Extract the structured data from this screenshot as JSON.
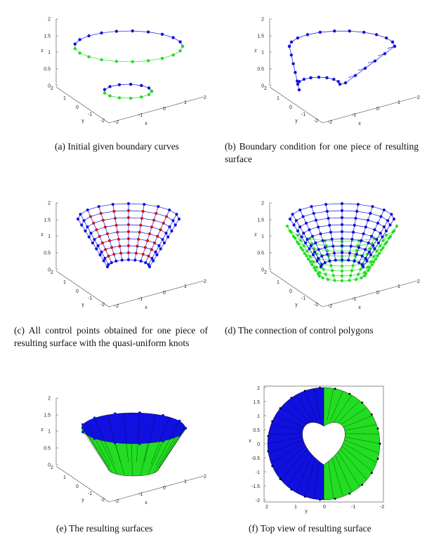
{
  "colors": {
    "blue": "#1010e0",
    "green": "#22dd22",
    "red": "#dd1010",
    "black": "#000000"
  },
  "panels": [
    {
      "caption": "(a) Initial given boundary curves",
      "axes": {
        "z_ticks": [
          "2",
          "1.5",
          "1",
          "0.5",
          "0"
        ],
        "y_ticks": [
          "2",
          "1",
          "0",
          "-1",
          "-2"
        ],
        "x_ticks": [
          "-2",
          "-1",
          "0",
          "1",
          "2"
        ],
        "x_label": "x",
        "y_label": "y",
        "z_label": "z"
      }
    },
    {
      "caption": "(b) Boundary condition for one piece of resulting surface",
      "axes": {
        "z_ticks": [
          "2",
          "1.5",
          "1",
          "0.5",
          "0"
        ],
        "y_ticks": [
          "2",
          "1",
          "0",
          "-1",
          "-2"
        ],
        "x_ticks": [
          "-2",
          "-1",
          "0",
          "1",
          "2"
        ],
        "x_label": "x",
        "y_label": "y",
        "z_label": "z"
      }
    },
    {
      "caption": "(c) All control points obtained for one piece of resulting surface with the quasi-uniform knots",
      "axes": {
        "z_ticks": [
          "2",
          "1.5",
          "1",
          "0.5",
          "0"
        ],
        "y_ticks": [
          "2",
          "1",
          "0",
          "-1",
          "-2"
        ],
        "x_ticks": [
          "-2",
          "-1",
          "0",
          "1",
          "2"
        ],
        "x_label": "x",
        "y_label": "y",
        "z_label": "z"
      }
    },
    {
      "caption": "(d) The connection of control polygons",
      "axes": {
        "z_ticks": [
          "2",
          "1.5",
          "1",
          "0.5",
          "0"
        ],
        "y_ticks": [
          "2",
          "1",
          "0",
          "-1",
          "-2"
        ],
        "x_ticks": [
          "-2",
          "-1",
          "0",
          "1",
          "2"
        ],
        "x_label": "x",
        "y_label": "y",
        "z_label": "z"
      }
    },
    {
      "caption": "(e) The resulting surfaces",
      "axes": {
        "z_ticks": [
          "2",
          "1.5",
          "1",
          "0.5",
          "0"
        ],
        "y_ticks": [
          "2",
          "1",
          "0",
          "-1",
          "-2"
        ],
        "x_ticks": [
          "-2",
          "-1",
          "0",
          "1",
          "2"
        ],
        "x_label": "x",
        "y_label": "y",
        "z_label": "z"
      }
    },
    {
      "caption": "(f) Top view of resulting surface",
      "axes": {
        "x_ticks": [
          "2",
          "1.5",
          "1",
          "0.5",
          "0",
          "-0.5",
          "-1",
          "-1.5",
          "-2"
        ],
        "y_ticks": [
          "2",
          "1",
          "0",
          "-1",
          "-2"
        ],
        "x_label": "x",
        "y_label": "y"
      }
    }
  ]
}
